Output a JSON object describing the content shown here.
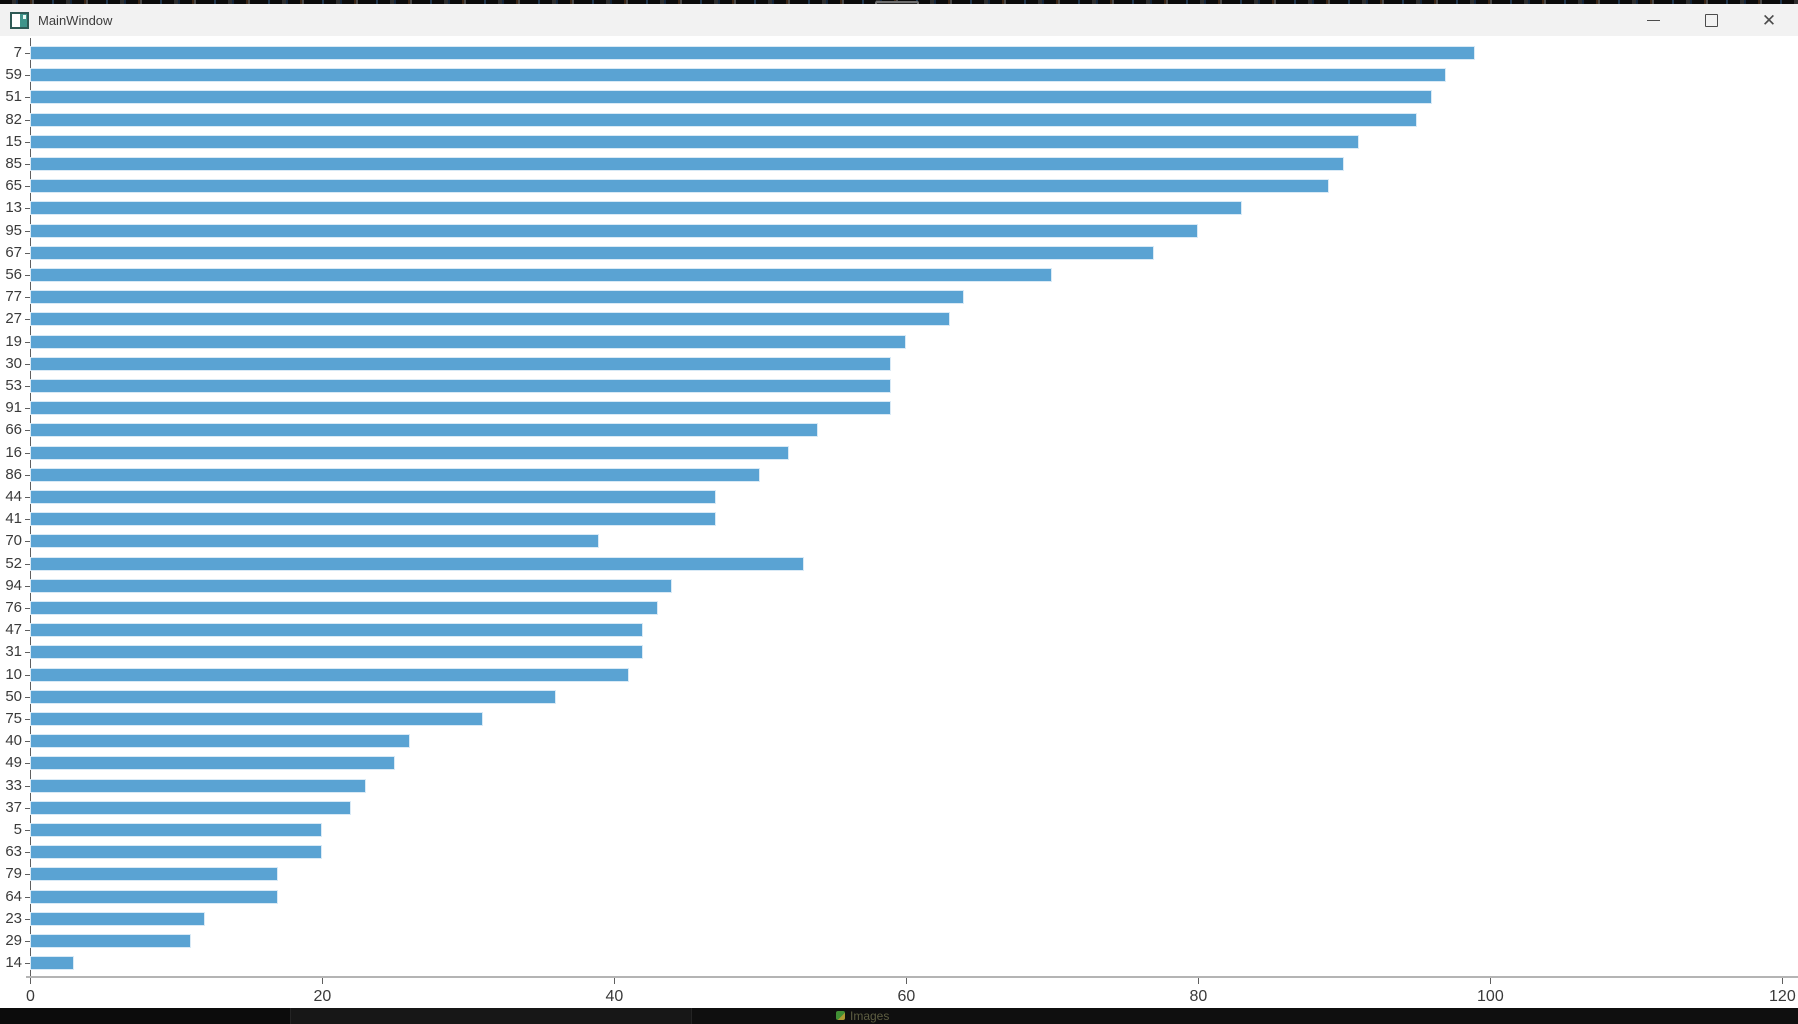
{
  "window": {
    "title": "MainWindow",
    "controls": {
      "minimize_icon": "minimize-icon",
      "maximize_icon": "maximize-icon",
      "close_icon": "close-icon",
      "close_glyph": "✕"
    }
  },
  "taskbar": {
    "item_label": "Images"
  },
  "chart_data": {
    "type": "bar",
    "orientation": "horizontal",
    "title": "",
    "xlabel": "",
    "ylabel": "",
    "categories": [
      "7",
      "59",
      "51",
      "82",
      "15",
      "85",
      "65",
      "13",
      "95",
      "67",
      "56",
      "77",
      "27",
      "19",
      "30",
      "53",
      "91",
      "66",
      "16",
      "86",
      "44",
      "41",
      "70",
      "52",
      "94",
      "76",
      "47",
      "31",
      "10",
      "50",
      "75",
      "40",
      "49",
      "33",
      "37",
      "5",
      "63",
      "79",
      "64",
      "23",
      "29",
      "14"
    ],
    "values": [
      99,
      97,
      96,
      95,
      91,
      90,
      89,
      83,
      80,
      77,
      70,
      64,
      63,
      60,
      59,
      59,
      59,
      54,
      52,
      50,
      47,
      47,
      39,
      53,
      44,
      43,
      42,
      42,
      41,
      36,
      31,
      26,
      25,
      23,
      22,
      20,
      20,
      17,
      17,
      12,
      11,
      3
    ],
    "xlim": [
      0,
      120
    ],
    "x_ticks": [
      "0",
      "20",
      "40",
      "60",
      "80",
      "100",
      "120"
    ],
    "grid": false,
    "legend": null,
    "bar_color": "#5aa3d3",
    "bar_edge_color": "#d9eaf6"
  }
}
